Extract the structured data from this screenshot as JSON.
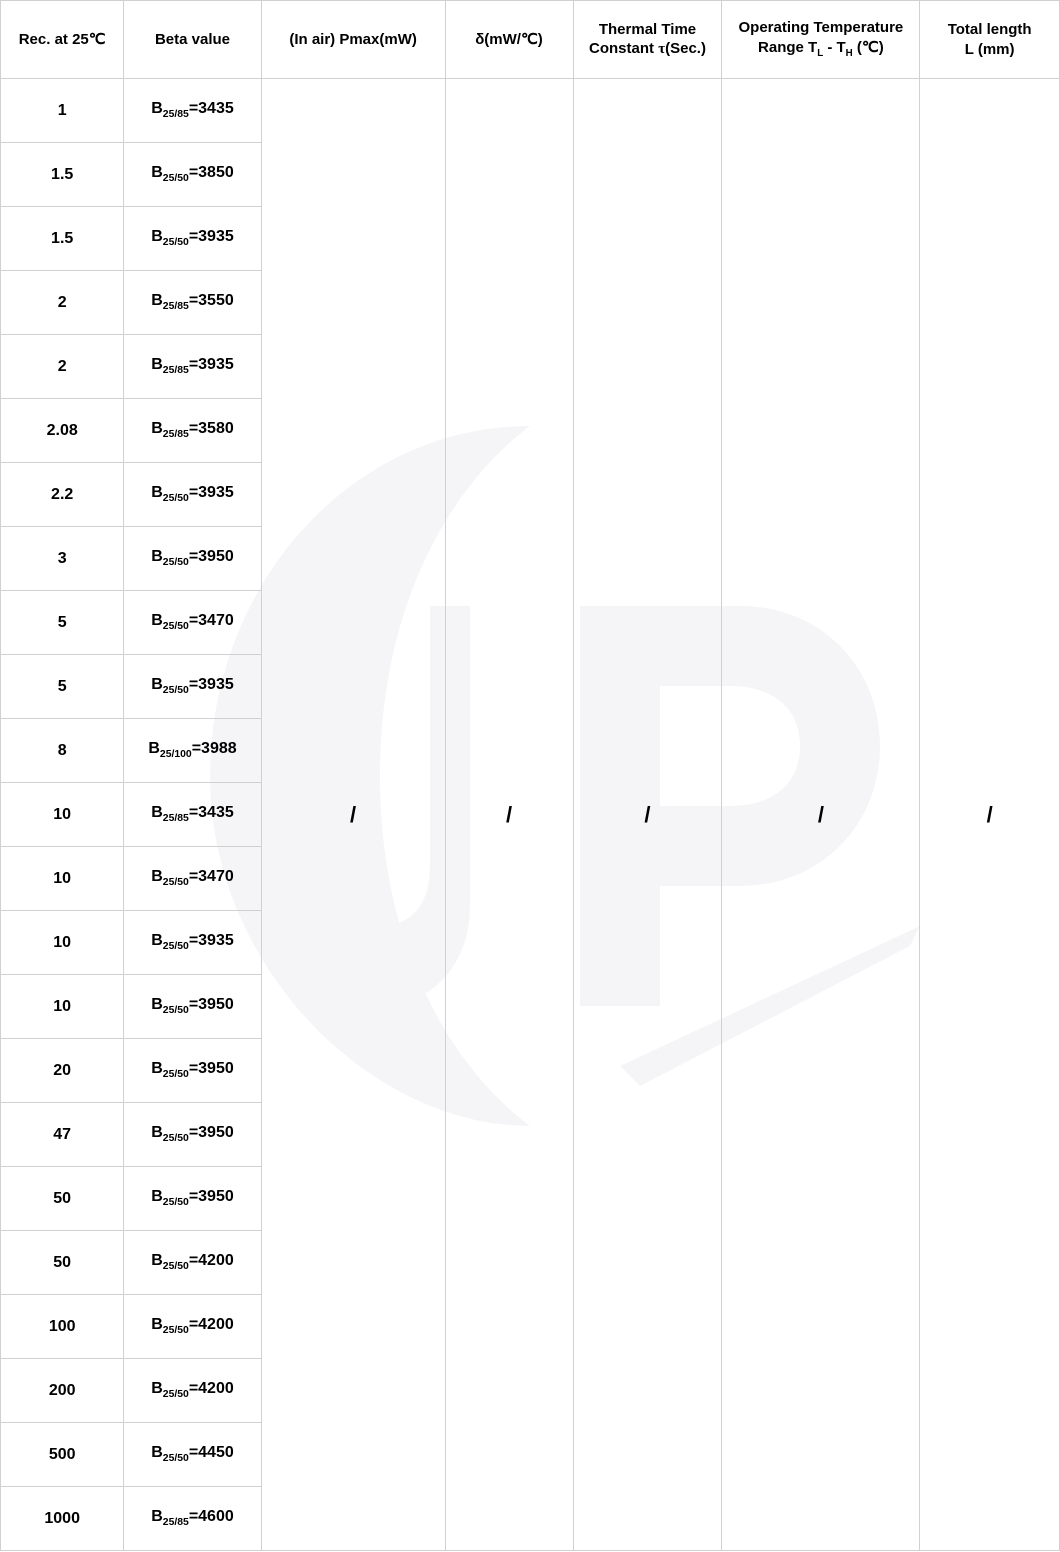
{
  "headers": {
    "rec": "Rec. at 25℃",
    "beta": "Beta value",
    "pmax": "(In air) Pmax(mW)",
    "delta": "δ(mW/℃)",
    "tau_pre": "Thermal Time Constant ",
    "tau_sym": "τ",
    "tau_post": "(Sec.)",
    "range_line1": "Operating Temperature",
    "range_line2_pre": "Range  T",
    "range_line2_mid": " - T",
    "range_line2_post": " (℃)",
    "len_line1": "Total length",
    "len_line2": "L  (mm)"
  },
  "rows": [
    {
      "rec": "1",
      "b_sub": "25/85",
      "b_val": "3435"
    },
    {
      "rec": "1.5",
      "b_sub": "25/50",
      "b_val": "3850"
    },
    {
      "rec": "1.5",
      "b_sub": "25/50",
      "b_val": "3935"
    },
    {
      "rec": "2",
      "b_sub": "25/85",
      "b_val": "3550"
    },
    {
      "rec": "2",
      "b_sub": "25/85",
      "b_val": "3935"
    },
    {
      "rec": "2.08",
      "b_sub": "25/85",
      "b_val": "3580"
    },
    {
      "rec": "2.2",
      "b_sub": "25/50",
      "b_val": "3935"
    },
    {
      "rec": "3",
      "b_sub": "25/50",
      "b_val": "3950"
    },
    {
      "rec": "5",
      "b_sub": "25/50",
      "b_val": "3470"
    },
    {
      "rec": "5",
      "b_sub": "25/50",
      "b_val": "3935"
    },
    {
      "rec": "8",
      "b_sub": "25/100",
      "b_val": "3988"
    },
    {
      "rec": "10",
      "b_sub": "25/85",
      "b_val": "3435"
    },
    {
      "rec": "10",
      "b_sub": "25/50",
      "b_val": "3470"
    },
    {
      "rec": "10",
      "b_sub": "25/50",
      "b_val": "3935"
    },
    {
      "rec": "10",
      "b_sub": "25/50",
      "b_val": "3950"
    },
    {
      "rec": "20",
      "b_sub": "25/50",
      "b_val": "3950"
    },
    {
      "rec": "47",
      "b_sub": "25/50",
      "b_val": "3950"
    },
    {
      "rec": "50",
      "b_sub": "25/50",
      "b_val": "3950"
    },
    {
      "rec": "50",
      "b_sub": "25/50",
      "b_val": "4200"
    },
    {
      "rec": "100",
      "b_sub": "25/50",
      "b_val": "4200"
    },
    {
      "rec": "200",
      "b_sub": "25/50",
      "b_val": "4200"
    },
    {
      "rec": "500",
      "b_sub": "25/50",
      "b_val": "4450"
    },
    {
      "rec": "1000",
      "b_sub": "25/85",
      "b_val": "4600"
    }
  ],
  "merged_slash": "/",
  "style": {
    "border_color": "#d0d0d0",
    "text_color": "#000000",
    "background": "#ffffff",
    "watermark_color": "#8a8aa8"
  }
}
